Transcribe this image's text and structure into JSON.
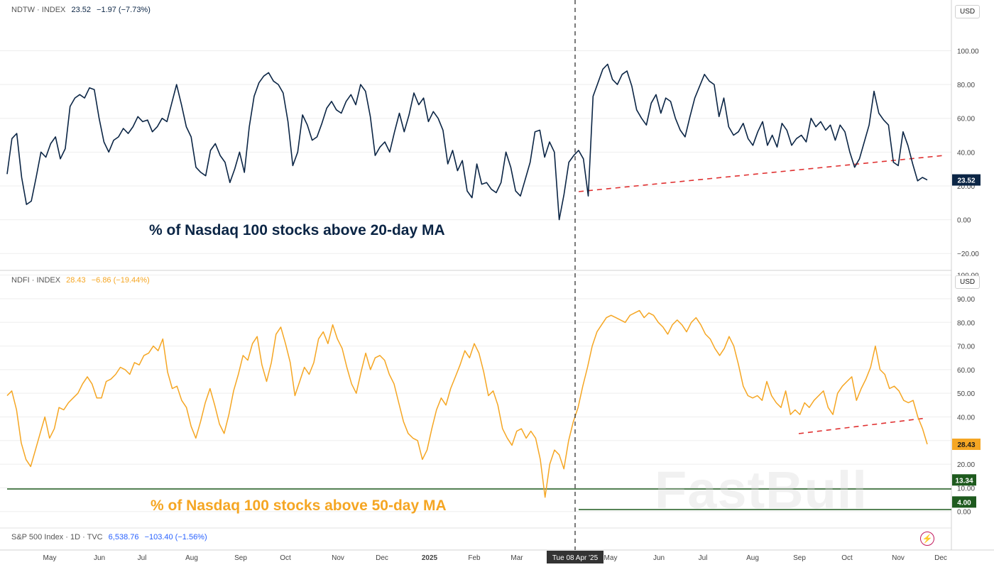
{
  "panels": [
    {
      "symbol": "NDTW · INDEX",
      "last": "23.52",
      "change": "−1.97 (−7.73%)",
      "currency": "USD",
      "caption": "% of Nasdaq 100 stocks above 20-day MA",
      "color": "#0b2545"
    },
    {
      "symbol": "NDFI · INDEX",
      "last": "28.43",
      "change": "−6.86 (−19.44%)",
      "currency": "USD",
      "caption": "% of Nasdaq 100 stocks above 50-day MA",
      "color": "#f5a623"
    }
  ],
  "footer": {
    "label": "S&P 500 Index · 1D · TVC",
    "value": "6,538.76",
    "change": "−103.40 (−1.56%)"
  },
  "watermark": "FastBull",
  "crosshair_label": "Tue 08 Apr '25",
  "x_axis_labels": [
    "May",
    "Jun",
    "Jul",
    "Aug",
    "Sep",
    "Oct",
    "Nov",
    "Dec",
    "2025",
    "Feb",
    "Mar",
    "May",
    "Jun",
    "Jul",
    "Aug",
    "Sep",
    "Oct",
    "Nov",
    "Dec"
  ],
  "chart_data": [
    {
      "type": "line",
      "series": [
        {
          "values": [
            27,
            48,
            51,
            25,
            9,
            11,
            25,
            40,
            37,
            45,
            49,
            36,
            42,
            67,
            72,
            74,
            72,
            78,
            77,
            60,
            46,
            40,
            47,
            49,
            54,
            51,
            55,
            61,
            58,
            59,
            52,
            55,
            60,
            58,
            69,
            80,
            68,
            55,
            49,
            31,
            28,
            26,
            41,
            45,
            38,
            34,
            22,
            30,
            40,
            28,
            55,
            73,
            81,
            85,
            87,
            82,
            80,
            75,
            58,
            32,
            40,
            62,
            56,
            47,
            49,
            57,
            66,
            70,
            65,
            63,
            70,
            74,
            68,
            80,
            76,
            61,
            38,
            43,
            46,
            40,
            52,
            63,
            52,
            62,
            75,
            68,
            72,
            58,
            64,
            60,
            53,
            33,
            41,
            29,
            35,
            17,
            13,
            33,
            21,
            22,
            18,
            16,
            22,
            40,
            31,
            17,
            14,
            24,
            34,
            52,
            53,
            37,
            46,
            40,
            0,
            15,
            34,
            38,
            41,
            36,
            14,
            73,
            81,
            89,
            92,
            83,
            80,
            86,
            88,
            79,
            65,
            60,
            56,
            69,
            74,
            63,
            72,
            70,
            60,
            53,
            49,
            61,
            72,
            79,
            86,
            82,
            80,
            61,
            72,
            55,
            50,
            52,
            57,
            48,
            44,
            52,
            58,
            44,
            50,
            43,
            57,
            53,
            44,
            48,
            50,
            46,
            60,
            55,
            58,
            53,
            56,
            47,
            56,
            52,
            40,
            31,
            36,
            46,
            56,
            76,
            63,
            59,
            56,
            34,
            32,
            52,
            44,
            33,
            23,
            25,
            23.52
          ]
        }
      ],
      "ylim": [
        -30,
        130
      ],
      "y_ticks": [
        100,
        80,
        60,
        40,
        20,
        0,
        -20
      ],
      "y_tick_labels": [
        "100.00",
        "80.00",
        "60.00",
        "40.00",
        "20.00",
        "0.00",
        "−20.00"
      ]
    },
    {
      "type": "line",
      "series": [
        {
          "values": [
            49,
            51,
            43,
            29,
            22,
            19,
            26,
            33,
            40,
            31,
            35,
            44,
            43,
            46,
            48,
            50,
            54,
            57,
            54,
            48,
            48,
            55,
            56,
            58,
            61,
            60,
            58,
            63,
            62,
            66,
            67,
            70,
            68,
            73,
            59,
            52,
            53,
            47,
            44,
            36,
            31,
            38,
            46,
            52,
            45,
            37,
            33,
            41,
            51,
            58,
            66,
            64,
            71,
            74,
            62,
            55,
            63,
            75,
            78,
            71,
            63,
            49,
            55,
            61,
            58,
            63,
            73,
            76,
            71,
            79,
            73,
            69,
            61,
            54,
            50,
            59,
            67,
            60,
            65,
            66,
            64,
            58,
            54,
            46,
            38,
            33,
            31,
            30,
            22,
            26,
            35,
            43,
            48,
            45,
            52,
            57,
            62,
            68,
            65,
            71,
            67,
            59,
            49,
            51,
            45,
            35,
            31,
            28,
            34,
            35,
            31,
            34,
            31,
            22,
            6,
            20,
            26,
            24,
            18,
            30,
            38,
            44,
            53,
            61,
            70,
            76,
            79,
            82,
            83,
            82,
            81,
            80,
            83,
            84,
            85,
            82,
            84,
            83,
            80,
            78,
            75,
            79,
            81,
            79,
            76,
            80,
            82,
            79,
            75,
            73,
            69,
            66,
            69,
            74,
            70,
            62,
            53,
            49,
            48,
            49,
            47,
            55,
            49,
            46,
            44,
            51,
            41,
            43,
            41,
            46,
            44,
            47,
            49,
            51,
            44,
            41,
            50,
            53,
            55,
            57,
            47,
            52,
            56,
            61,
            70,
            60,
            58,
            52,
            53,
            51,
            47,
            46,
            47,
            40,
            35,
            28.43
          ]
        }
      ],
      "ylim": [
        -7,
        102
      ],
      "y_ticks": [
        100,
        90,
        80,
        70,
        60,
        50,
        40,
        30,
        20,
        10,
        0
      ],
      "y_tick_labels": [
        "100.00",
        "90.00",
        "80.00",
        "70.00",
        "60.00",
        "50.00",
        "40.00",
        "30.00",
        "20.00",
        "10.00",
        "0.00"
      ],
      "support_levels": [
        {
          "value": 13.34,
          "label": "13.34"
        },
        {
          "value": 4.0,
          "label": "4.00"
        }
      ]
    }
  ],
  "colors": {
    "series_top": "#0b2545",
    "series_bottom": "#f5a623",
    "trendline": "#e03131",
    "support": "#1e5a1e",
    "grid": "#eeeeee",
    "axis_text": "#444444"
  }
}
